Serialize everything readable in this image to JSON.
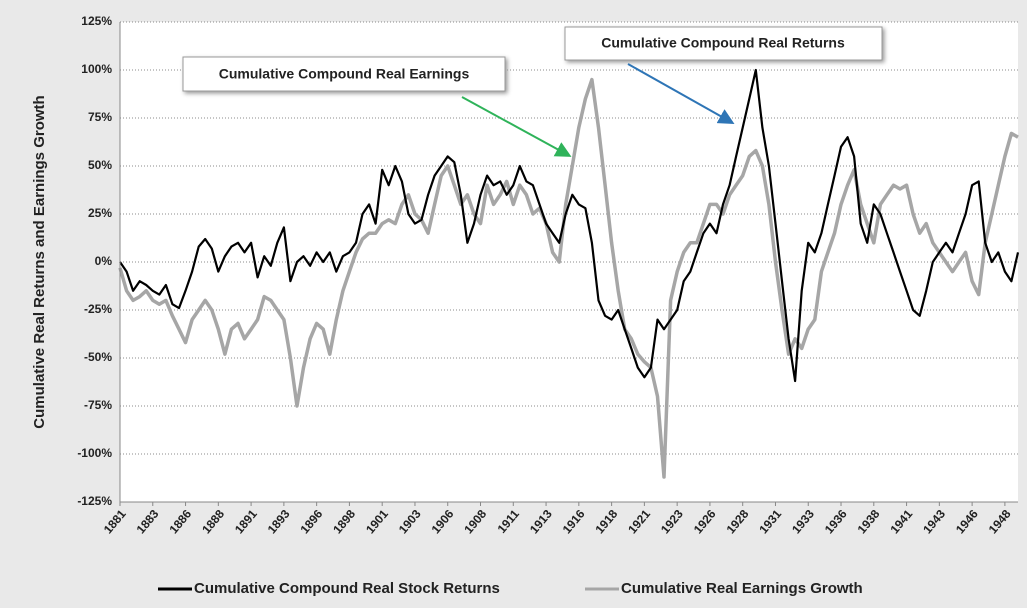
{
  "chart_data": {
    "type": "line",
    "y_label": "Cumulative Real Returns and Earnings Growth",
    "annotations": [
      {
        "text": "Cumulative Compound Real Earnings"
      },
      {
        "text": "Cumulative Compound Real Returns"
      }
    ],
    "xlim": [
      1881,
      1949.5
    ],
    "xticks": [
      1881,
      {
        "value": 1883.5,
        "label": "1883"
      },
      1886,
      {
        "value": 1888.5,
        "label": "1888"
      },
      1891,
      {
        "value": 1893.5,
        "label": "1893"
      },
      1896,
      {
        "value": 1898.5,
        "label": "1898"
      },
      1901,
      {
        "value": 1903.5,
        "label": "1903"
      },
      1906,
      {
        "value": 1908.5,
        "label": "1908"
      },
      1911,
      {
        "value": 1913.5,
        "label": "1913"
      },
      1916,
      {
        "value": 1918.5,
        "label": "1918"
      },
      1921,
      {
        "value": 1923.5,
        "label": "1923"
      },
      1926,
      {
        "value": 1928.5,
        "label": "1928"
      },
      1931,
      {
        "value": 1933.5,
        "label": "1933"
      },
      1936,
      {
        "value": 1938.5,
        "label": "1938"
      },
      1941,
      {
        "value": 1943.5,
        "label": "1943"
      },
      1946,
      {
        "value": 1948.5,
        "label": "1948"
      }
    ],
    "ylim": [
      -125,
      125
    ],
    "yticks": [
      {
        "value": -125,
        "label": "-125%"
      },
      {
        "value": -100,
        "label": "-100%"
      },
      {
        "value": -75,
        "label": "-75%"
      },
      {
        "value": -50,
        "label": "-50%"
      },
      {
        "value": -25,
        "label": "-25%"
      },
      {
        "value": 0,
        "label": "0%"
      },
      {
        "value": 25,
        "label": "25%"
      },
      {
        "value": 50,
        "label": "50%"
      },
      {
        "value": 75,
        "label": "75%"
      },
      {
        "value": 100,
        "label": "100%"
      },
      {
        "value": 125,
        "label": "125%"
      }
    ],
    "grid": true,
    "legend": "bottom",
    "x": [
      1881,
      1881.5,
      1882,
      1882.5,
      1883,
      1883.5,
      1884,
      1884.5,
      1885,
      1885.5,
      1886,
      1886.5,
      1887,
      1887.5,
      1888,
      1888.5,
      1889,
      1889.5,
      1890,
      1890.5,
      1891,
      1891.5,
      1892,
      1892.5,
      1893,
      1893.5,
      1894,
      1894.5,
      1895,
      1895.5,
      1896,
      1896.5,
      1897,
      1897.5,
      1898,
      1898.5,
      1899,
      1899.5,
      1900,
      1900.5,
      1901,
      1901.5,
      1902,
      1902.5,
      1903,
      1903.5,
      1904,
      1904.5,
      1905,
      1905.5,
      1906,
      1906.5,
      1907,
      1907.5,
      1908,
      1908.5,
      1909,
      1909.5,
      1910,
      1910.5,
      1911,
      1911.5,
      1912,
      1912.5,
      1913,
      1913.5,
      1914,
      1914.5,
      1915,
      1915.5,
      1916,
      1916.5,
      1917,
      1917.5,
      1918,
      1918.5,
      1919,
      1919.5,
      1920,
      1920.5,
      1921,
      1921.5,
      1922,
      1922.5,
      1923,
      1923.5,
      1924,
      1924.5,
      1925,
      1925.5,
      1926,
      1926.5,
      1927,
      1927.5,
      1928,
      1928.5,
      1929,
      1929.5,
      1930,
      1930.5,
      1931,
      1931.5,
      1932,
      1932.5,
      1933,
      1933.5,
      1934,
      1934.5,
      1935,
      1935.5,
      1936,
      1936.5,
      1937,
      1937.5,
      1938,
      1938.5,
      1939,
      1939.5,
      1940,
      1940.5,
      1941,
      1941.5,
      1942,
      1942.5,
      1943,
      1943.5,
      1944,
      1944.5,
      1945,
      1945.5,
      1946,
      1946.5,
      1947,
      1947.5,
      1948,
      1948.5,
      1949,
      1949.5
    ],
    "series": [
      {
        "name": "Cumulative Compound Real Stock Returns",
        "color": "#000000",
        "width": 2.2,
        "values": [
          0,
          -5,
          -15,
          -10,
          -12,
          -15,
          -17,
          -12,
          -22,
          -24,
          -15,
          -5,
          8,
          12,
          7,
          -5,
          3,
          8,
          10,
          5,
          10,
          -8,
          3,
          -2,
          10,
          18,
          -10,
          0,
          3,
          -2,
          5,
          0,
          5,
          -5,
          3,
          5,
          10,
          25,
          30,
          20,
          48,
          40,
          50,
          42,
          25,
          20,
          22,
          35,
          45,
          50,
          55,
          52,
          35,
          10,
          20,
          35,
          45,
          40,
          42,
          35,
          40,
          50,
          42,
          40,
          30,
          20,
          15,
          10,
          25,
          35,
          30,
          28,
          10,
          -20,
          -28,
          -30,
          -25,
          -35,
          -45,
          -55,
          -60,
          -55,
          -30,
          -35,
          -30,
          -25,
          -10,
          -5,
          5,
          15,
          20,
          15,
          30,
          40,
          55,
          70,
          85,
          100,
          70,
          50,
          20,
          -10,
          -40,
          -62,
          -15,
          10,
          5,
          15,
          30,
          45,
          60,
          65,
          55,
          20,
          10,
          30,
          25,
          15,
          5,
          -5,
          -15,
          -25,
          -28,
          -15,
          0,
          5,
          10,
          5,
          15,
          25,
          40,
          42,
          10,
          0,
          5,
          -5,
          -10,
          5
        ]
      },
      {
        "name": "Cumulative Real Earnings Growth",
        "color": "#a6a6a6",
        "width": 3.5,
        "values": [
          -3,
          -15,
          -20,
          -18,
          -15,
          -20,
          -22,
          -20,
          -28,
          -35,
          -42,
          -30,
          -25,
          -20,
          -25,
          -35,
          -48,
          -35,
          -32,
          -40,
          -35,
          -30,
          -18,
          -20,
          -25,
          -30,
          -50,
          -75,
          -55,
          -40,
          -32,
          -35,
          -48,
          -30,
          -15,
          -5,
          5,
          12,
          15,
          15,
          20,
          22,
          20,
          30,
          35,
          25,
          22,
          15,
          30,
          45,
          50,
          40,
          30,
          35,
          25,
          20,
          40,
          30,
          35,
          42,
          30,
          40,
          35,
          25,
          28,
          20,
          5,
          0,
          30,
          50,
          70,
          85,
          95,
          70,
          40,
          10,
          -15,
          -35,
          -40,
          -48,
          -52,
          -55,
          -70,
          -112,
          -20,
          -5,
          5,
          10,
          10,
          20,
          30,
          30,
          25,
          35,
          40,
          45,
          55,
          58,
          50,
          30,
          0,
          -25,
          -48,
          -40,
          -45,
          -35,
          -30,
          -5,
          5,
          15,
          30,
          40,
          48,
          30,
          20,
          10,
          30,
          35,
          40,
          38,
          40,
          25,
          15,
          20,
          10,
          5,
          0,
          -5,
          0,
          5,
          -10,
          -17,
          10,
          25,
          40,
          55,
          67,
          65
        ]
      }
    ]
  }
}
